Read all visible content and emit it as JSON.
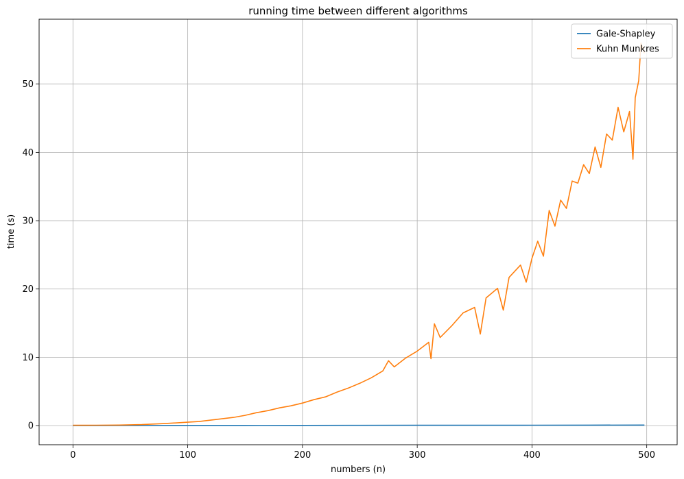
{
  "chart_data": {
    "type": "line",
    "title": "running time between different algorithms",
    "xlabel": "numbers (n)",
    "ylabel": "time (s)",
    "xlim": [
      -29.5,
      526.5
    ],
    "ylim": [
      -2.8,
      59.5
    ],
    "xticks": [
      0,
      100,
      200,
      300,
      400,
      500
    ],
    "yticks": [
      0,
      10,
      20,
      30,
      40,
      50
    ],
    "grid": true,
    "legend_position": "top-right",
    "series": [
      {
        "name": "Gale-Shapley",
        "color": "#1f77b4",
        "x": [
          0,
          50,
          100,
          150,
          200,
          250,
          300,
          350,
          400,
          450,
          498
        ],
        "y": [
          0.0,
          0.01,
          0.02,
          0.02,
          0.03,
          0.04,
          0.05,
          0.05,
          0.06,
          0.07,
          0.08
        ]
      },
      {
        "name": "Kuhn Munkres",
        "color": "#ff7f0e",
        "x": [
          0,
          20,
          40,
          60,
          80,
          100,
          110,
          120,
          130,
          140,
          150,
          160,
          170,
          180,
          190,
          200,
          210,
          220,
          230,
          240,
          250,
          260,
          270,
          275,
          280,
          290,
          300,
          310,
          312,
          315,
          320,
          330,
          340,
          350,
          355,
          360,
          370,
          375,
          380,
          390,
          395,
          400,
          405,
          410,
          415,
          420,
          425,
          430,
          435,
          440,
          445,
          450,
          455,
          460,
          465,
          470,
          475,
          480,
          485,
          488,
          490,
          493,
          495,
          498
        ],
        "y": [
          0.05,
          0.06,
          0.08,
          0.15,
          0.3,
          0.5,
          0.6,
          0.8,
          1.0,
          1.2,
          1.5,
          1.9,
          2.2,
          2.6,
          2.9,
          3.3,
          3.8,
          4.2,
          4.9,
          5.5,
          6.2,
          7.0,
          8.0,
          9.5,
          8.6,
          9.9,
          10.9,
          12.2,
          9.8,
          14.9,
          12.9,
          14.6,
          16.5,
          17.3,
          13.4,
          18.7,
          20.1,
          16.9,
          21.7,
          23.5,
          21.0,
          24.5,
          27.0,
          24.8,
          31.5,
          29.2,
          33.0,
          31.8,
          35.8,
          35.5,
          38.2,
          36.9,
          40.8,
          37.8,
          42.7,
          41.8,
          46.6,
          43.0,
          46.0,
          39.0,
          48.0,
          50.5,
          56.0,
          54.5
        ]
      }
    ]
  }
}
